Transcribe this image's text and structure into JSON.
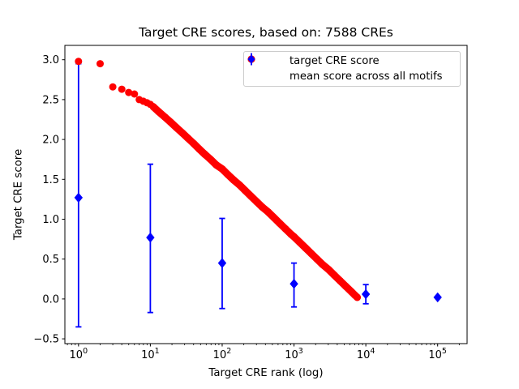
{
  "figure": {
    "title": "Target CRE scores, based on: 7588 CREs",
    "xlabel": "Target CRE rank (log)",
    "ylabel": "Target CRE score"
  },
  "legend": {
    "items": [
      {
        "label": "target CRE score",
        "marker": "circle",
        "color": "#ff0000"
      },
      {
        "label": "mean score across all motifs",
        "marker": "diamond-errorbar",
        "color": "#0000ff"
      }
    ]
  },
  "chart_data": {
    "type": "scatter",
    "title": "Target CRE scores, based on: 7588 CREs",
    "xlabel": "Target CRE rank (log)",
    "ylabel": "Target CRE score",
    "x_scale": "log",
    "xlim_log": [
      -0.19,
      5.41
    ],
    "ylim": [
      -0.56,
      3.18
    ],
    "xticks": [
      1,
      10,
      100,
      1000,
      10000,
      100000
    ],
    "xtick_exponents": [
      0,
      1,
      2,
      3,
      4,
      5
    ],
    "yticks": [
      3.0,
      2.5,
      2.0,
      1.5,
      1.0,
      0.5,
      0.0,
      -0.5
    ],
    "grid": false,
    "legend_position": "upper right",
    "series": [
      {
        "name": "target CRE score",
        "type": "scatter",
        "color": "#ff0000",
        "band_threshold_rank": 11,
        "points": [
          [
            1,
            2.98
          ],
          [
            2,
            2.95
          ],
          [
            3,
            2.66
          ],
          [
            4,
            2.63
          ],
          [
            5,
            2.59
          ],
          [
            6,
            2.57
          ],
          [
            7,
            2.5
          ],
          [
            8,
            2.48
          ],
          [
            9,
            2.46
          ],
          [
            10,
            2.44
          ],
          [
            11,
            2.41
          ],
          [
            13,
            2.35
          ],
          [
            16,
            2.28
          ],
          [
            19,
            2.22
          ],
          [
            23,
            2.15
          ],
          [
            28,
            2.08
          ],
          [
            33,
            2.02
          ],
          [
            40,
            1.95
          ],
          [
            48,
            1.88
          ],
          [
            58,
            1.81
          ],
          [
            69,
            1.75
          ],
          [
            83,
            1.68
          ],
          [
            100,
            1.63
          ],
          [
            120,
            1.56
          ],
          [
            145,
            1.49
          ],
          [
            174,
            1.43
          ],
          [
            209,
            1.36
          ],
          [
            251,
            1.29
          ],
          [
            302,
            1.22
          ],
          [
            363,
            1.15
          ],
          [
            437,
            1.09
          ],
          [
            525,
            1.02
          ],
          [
            631,
            0.95
          ],
          [
            759,
            0.88
          ],
          [
            912,
            0.81
          ],
          [
            1000,
            0.78
          ],
          [
            1202,
            0.71
          ],
          [
            1445,
            0.64
          ],
          [
            1738,
            0.57
          ],
          [
            2089,
            0.5
          ],
          [
            2512,
            0.43
          ],
          [
            3020,
            0.37
          ],
          [
            3631,
            0.3
          ],
          [
            4365,
            0.23
          ],
          [
            5248,
            0.16
          ],
          [
            6310,
            0.09
          ],
          [
            7000,
            0.05
          ],
          [
            7588,
            0.02
          ]
        ]
      },
      {
        "name": "mean score across all motifs",
        "type": "errorbar",
        "color": "#0000ff",
        "x": [
          1,
          10,
          100,
          1000,
          10000,
          100000
        ],
        "y": [
          1.27,
          0.77,
          0.45,
          0.19,
          0.06,
          0.02
        ],
        "err_up": [
          1.68,
          0.92,
          0.56,
          0.26,
          0.12,
          0
        ],
        "err_down": [
          1.62,
          0.94,
          0.57,
          0.29,
          0.12,
          0
        ]
      }
    ]
  }
}
